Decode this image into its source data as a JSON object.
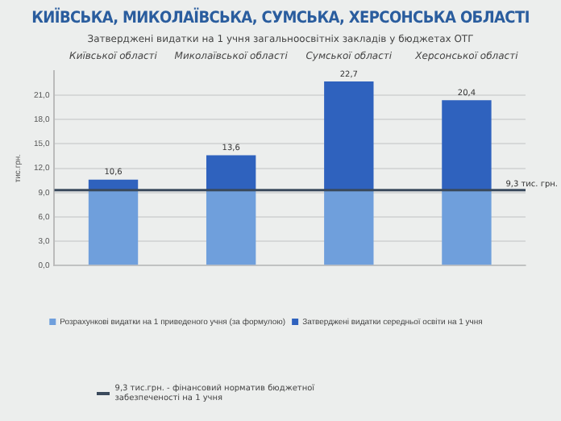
{
  "chart_data": {
    "type": "bar",
    "title": "КИЇВСЬКА, МИКОЛАЇВСЬКА, СУМСЬКА, ХЕРСОНСЬКА ОБЛАСТІ",
    "subtitle": "Затверджені видатки на 1 учня загальноосвітніх закладів у бюджетах ОТГ",
    "ylabel": "тис.грн.",
    "categories": [
      null,
      null,
      null,
      null
    ],
    "stacked": true,
    "series": [
      {
        "name": "Розрахункові видатки на 1 приведеного учня (за формулою)",
        "color": "#6f9fdc",
        "values": [
          9.3,
          9.3,
          9.3,
          9.3
        ]
      },
      {
        "name": "Затверджені видатки середньої освіти на 1 учня",
        "color": "#2f62be",
        "values": [
          1.3,
          4.3,
          13.4,
          11.1
        ]
      }
    ],
    "totals": [
      "10,6",
      "13,6",
      "22,7",
      "20,4"
    ],
    "ylim": [
      0,
      24
    ],
    "yticks": [
      {
        "value": 0,
        "label": "0,0"
      },
      {
        "value": 3,
        "label": "3,0"
      },
      {
        "value": 6,
        "label": "6,0"
      },
      {
        "value": 9,
        "label": "9,0"
      },
      {
        "value": 12,
        "label": "12,0"
      },
      {
        "value": 15,
        "label": "15,0"
      },
      {
        "value": 18,
        "label": "18,0"
      },
      {
        "value": 21,
        "label": "21,0"
      }
    ],
    "ref_lines": [
      {
        "axis": "y",
        "value": 9.3,
        "label": "9,3 тис. грн.",
        "color": "#3a4a5c"
      }
    ],
    "annotations": [
      "Київської області",
      "Миколаївської області",
      "Сумської області",
      "Херсонської області",
      "9,3 тис.грн. - фінансовий норматив бюджетної забезпеченості на 1 учня"
    ],
    "grid": "y",
    "legend": "bottom"
  }
}
